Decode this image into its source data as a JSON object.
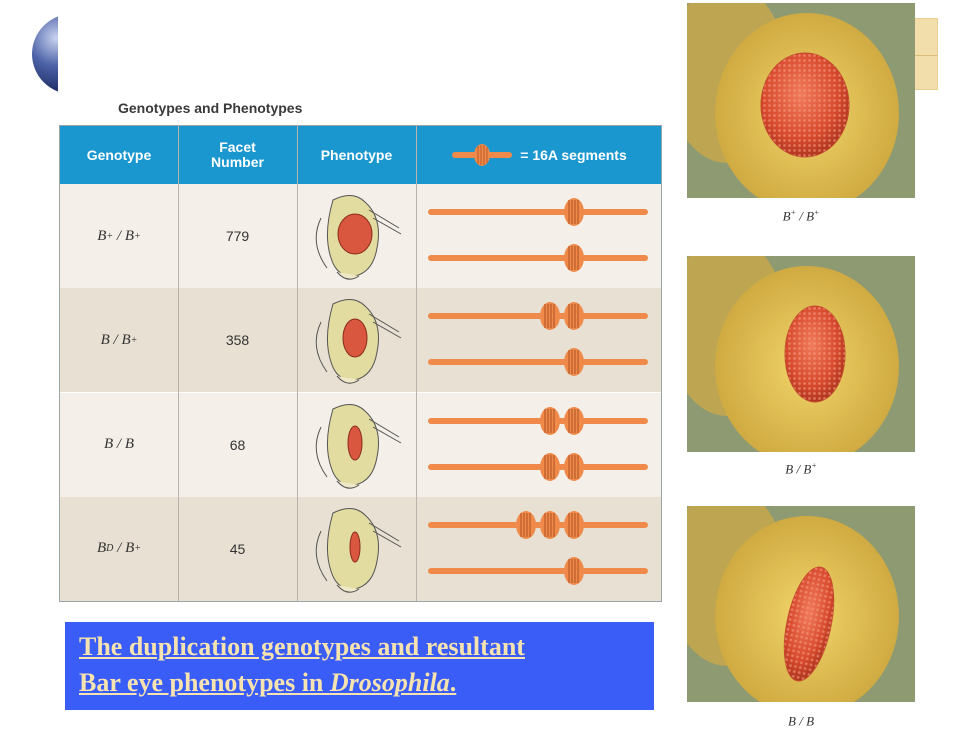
{
  "table": {
    "title": "Genotypes and Phenotypes",
    "headers": {
      "genotype": "Genotype",
      "facet_line1": "Facet",
      "facet_line2": "Number",
      "phenotype": "Phenotype",
      "segments_legend": "= 16A segments"
    },
    "rows": [
      {
        "geno_left": "B",
        "geno_left_sup": "+",
        "geno_sep": " / ",
        "geno_right": "B",
        "geno_right_sup": "+",
        "facet": "779",
        "segments": [
          1,
          1
        ],
        "eye_size": "large"
      },
      {
        "geno_left": "B",
        "geno_left_sup": "",
        "geno_sep": " / ",
        "geno_right": "B",
        "geno_right_sup": "+",
        "facet": "358",
        "segments": [
          2,
          1
        ],
        "eye_size": "medium"
      },
      {
        "geno_left": "B",
        "geno_left_sup": "",
        "geno_sep": " / ",
        "geno_right": "B",
        "geno_right_sup": "",
        "facet": "68",
        "segments": [
          2,
          2
        ],
        "eye_size": "small"
      },
      {
        "geno_left": "B",
        "geno_left_sup": "D",
        "geno_sep": " / ",
        "geno_right": "B",
        "geno_right_sup": "+",
        "facet": "45",
        "segments": [
          3,
          1
        ],
        "eye_size": "small"
      }
    ]
  },
  "caption": {
    "line1": "The duplication genotypes and resultant",
    "line2_plain": "Bar eye phenotypes in ",
    "line2_italic": "Drosophila",
    "line2_end": "."
  },
  "photos": [
    {
      "label_left": "B",
      "label_left_sup": "+",
      "label_sep": " / ",
      "label_right": "B",
      "label_right_sup": "+",
      "eye": "round"
    },
    {
      "label_left": "B",
      "label_left_sup": "",
      "label_sep": " / ",
      "label_right": "B",
      "label_right_sup": "+",
      "eye": "oval"
    },
    {
      "label_left": "B",
      "label_left_sup": "",
      "label_sep": " / ",
      "label_right": "B",
      "label_right_sup": "",
      "eye": "bar"
    }
  ],
  "colors": {
    "header_blue": "#1a97cf",
    "chromosome": "#ef8a4a",
    "segment": "#b85a2a",
    "caption_bg": "#3a5cf7",
    "caption_text": "#f6e3b0"
  }
}
